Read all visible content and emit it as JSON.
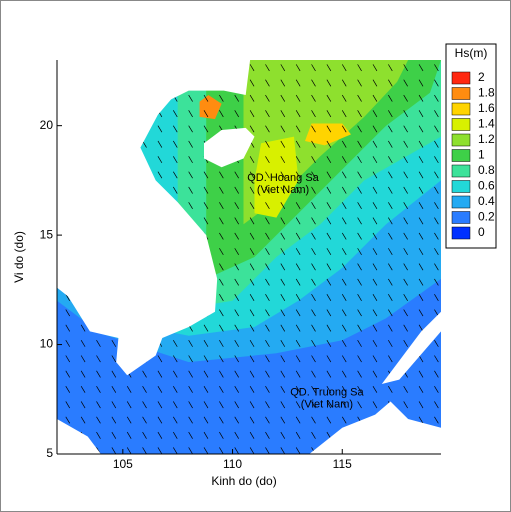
{
  "chart_data": {
    "type": "contour-map",
    "xlabel": "Kinh do (do)",
    "ylabel": "Vi do (do)",
    "xlim": [
      102,
      119.5
    ],
    "ylim": [
      5,
      23
    ],
    "xticks": [
      105,
      110,
      115
    ],
    "yticks": [
      5,
      10,
      15,
      20
    ],
    "colorbar": {
      "title": "Hs(m)",
      "levels": [
        0,
        0.2,
        0.4,
        0.6,
        0.8,
        1,
        1.2,
        1.4,
        1.6,
        1.8,
        2
      ],
      "colors": [
        "#0030ff",
        "#2a7cff",
        "#24aaf2",
        "#22d8d8",
        "#3ce29a",
        "#3ed048",
        "#8ee02e",
        "#d8f000",
        "#ffd400",
        "#ff8c10",
        "#ff2810"
      ]
    },
    "annotations": [
      {
        "lines": [
          "QD. Hoang Sa",
          "(Viet Nam)"
        ],
        "lon": 112.3,
        "lat": 17.6
      },
      {
        "lines": [
          "QD. Truong Sa",
          "(Viet Nam)"
        ],
        "lon": 114.3,
        "lat": 7.8
      }
    ]
  }
}
